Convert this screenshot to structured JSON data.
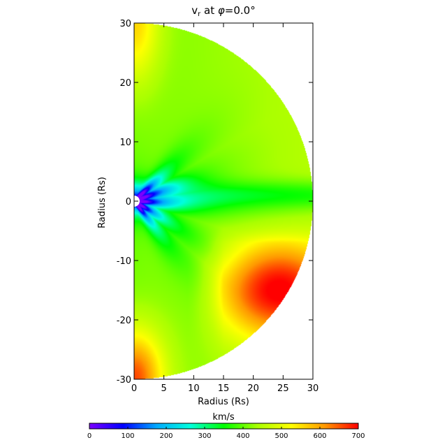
{
  "chart_data": {
    "type": "heatmap",
    "title": "v",
    "title_subscript": "r",
    "title_suffix": " at ",
    "title_phi": "φ",
    "title_value": "=0.0°",
    "xlabel": "Radius (Rs)",
    "ylabel": "Radius (Rs)",
    "xlim": [
      0,
      30
    ],
    "ylim": [
      -30,
      30
    ],
    "xticks": [
      0,
      5,
      10,
      15,
      20,
      25,
      30
    ],
    "yticks": [
      -30,
      -20,
      -10,
      0,
      10,
      20,
      30
    ],
    "domain": "half-disk, r <= 30",
    "colorbar": {
      "label": "km/s",
      "range": [
        0,
        700
      ],
      "ticks": [
        0,
        100,
        200,
        300,
        400,
        500,
        600,
        700
      ],
      "colors": [
        "#7b00ff",
        "#0000ff",
        "#00aaff",
        "#00ffdd",
        "#00ff00",
        "#aaff00",
        "#ffff00",
        "#ff9900",
        "#ff0000"
      ]
    },
    "field_features": [
      {
        "feature": "slow core near origin",
        "x": 0.5,
        "y": 0,
        "value": 10
      },
      {
        "feature": "fast stream lower right",
        "x": 25,
        "y": -15,
        "value": 680
      },
      {
        "feature": "fast stream lower left",
        "x": 1,
        "y": -28,
        "value": 640
      },
      {
        "feature": "fast stream upper left",
        "x": 2,
        "y": 27,
        "value": 560
      },
      {
        "feature": "background wind",
        "x": 25,
        "y": 10,
        "value": 420
      }
    ]
  }
}
